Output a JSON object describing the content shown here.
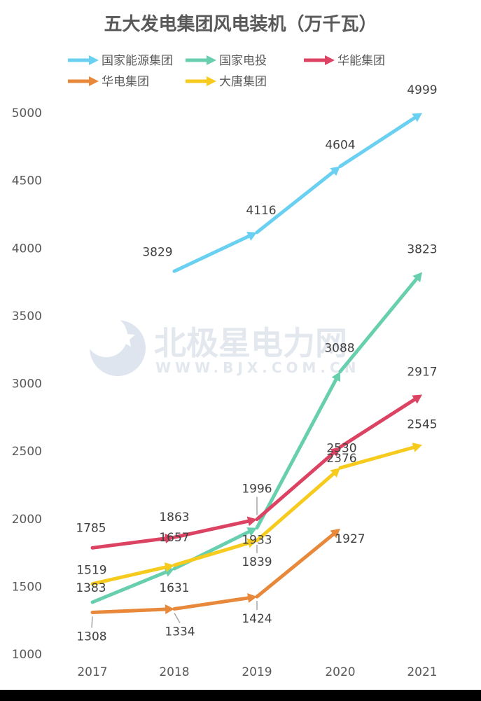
{
  "chart_data": {
    "type": "line",
    "title": "五大发电集团风电装机（万千瓦）",
    "xlabel": "",
    "ylabel": "",
    "categories": [
      "2017",
      "2018",
      "2019",
      "2020",
      "2021"
    ],
    "ylim": [
      1000,
      5000
    ],
    "yticks": [
      1000,
      1500,
      2000,
      2500,
      3000,
      3500,
      4000,
      4500,
      5000
    ],
    "grid": false,
    "legend_position": "top",
    "series": [
      {
        "name": "国家能源集团",
        "color": "#6ad0f2",
        "values": [
          null,
          3829,
          4116,
          4604,
          4999
        ]
      },
      {
        "name": "国家电投",
        "color": "#68cfae",
        "values": [
          1383,
          1631,
          1933,
          3088,
          3823
        ]
      },
      {
        "name": "华能集团",
        "color": "#dc4262",
        "values": [
          1785,
          1863,
          1996,
          2530,
          2917
        ]
      },
      {
        "name": "华电集团",
        "color": "#e8883a",
        "values": [
          1308,
          1334,
          1424,
          1927,
          null
        ]
      },
      {
        "name": "大唐集团",
        "color": "#f6cb1d",
        "values": [
          1519,
          1657,
          1839,
          2376,
          2545
        ]
      }
    ]
  },
  "watermark": {
    "brand": "北极星电力网",
    "url": "WWW.BJX.COM.CN",
    "logo_icon": "star-moon-logo-icon"
  }
}
